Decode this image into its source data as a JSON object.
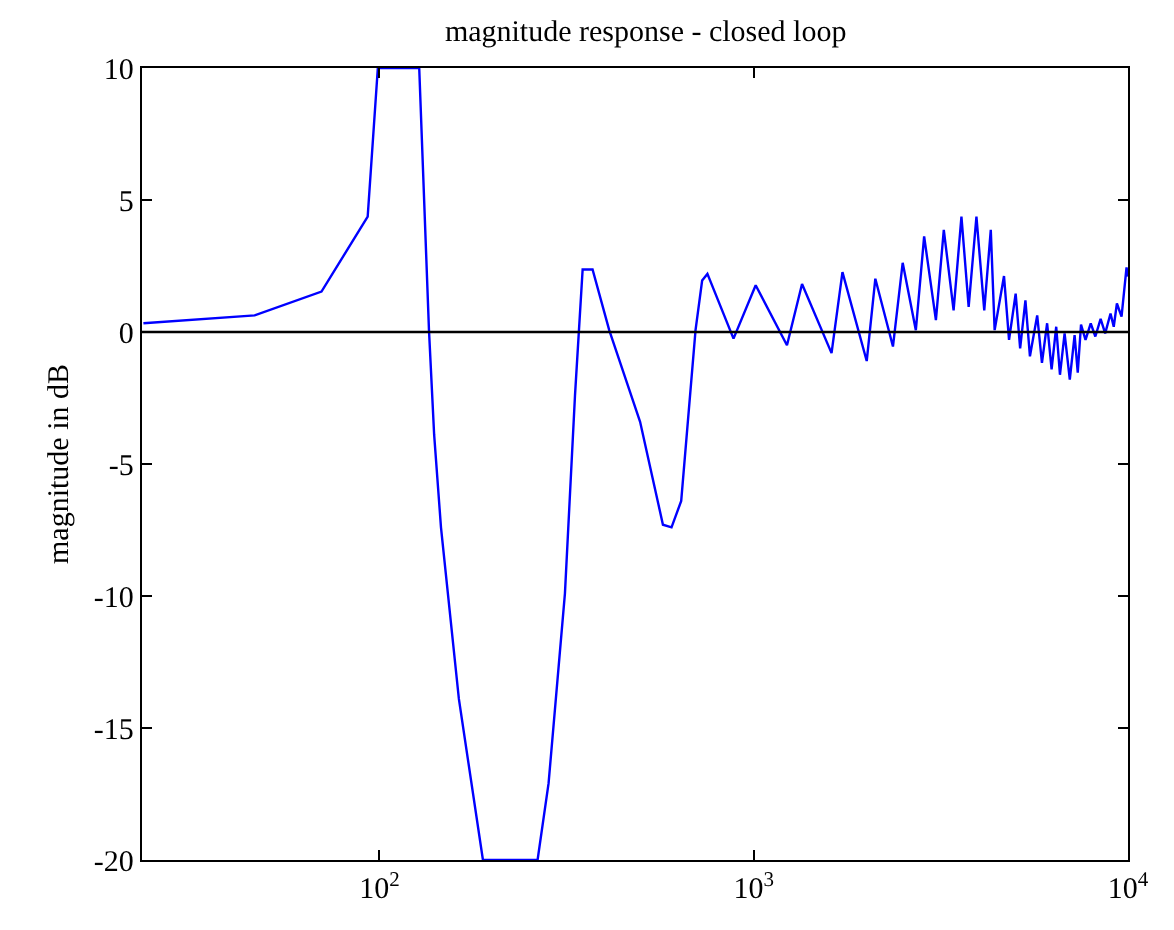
{
  "chart_data": {
    "type": "line",
    "title": "magnitude response - closed loop",
    "ylabel": "magnitude in dB",
    "log": "x",
    "marker": "none",
    "line_style": "solid",
    "xlim": [
      23.2,
      10000
    ],
    "ylim": [
      -20,
      10
    ],
    "xticks": [
      {
        "value": 100,
        "label": "10$^{2}$"
      },
      {
        "value": 1000,
        "label": "10$^{3}$"
      },
      {
        "value": 10000,
        "label": "10$^{4}$"
      }
    ],
    "yticks": [
      -20,
      -15,
      -10,
      -5,
      0,
      5,
      10
    ],
    "ref_lines": [
      {
        "axis": "y",
        "value": 0,
        "color": "#000000"
      }
    ],
    "series": [
      {
        "color": "#0000ff",
        "x": [
          23.4,
          46.4,
          70,
          93,
          99,
          127.7,
          135.6,
          140,
          146,
          163,
          189,
          264.5,
          283,
          313,
          333,
          349,
          371,
          411,
          497,
          572,
          603,
          640,
          699,
          728,
          752,
          883,
          1012,
          1227,
          1346,
          1614,
          1726,
          2004,
          2113,
          2355,
          2500,
          2711,
          2853,
          3067,
          3220,
          3420,
          3589,
          3752,
          3936,
          4130,
          4299,
          4402,
          4663,
          4810,
          5010,
          5150,
          5320,
          5470,
          5720,
          5890,
          6080,
          6250,
          6430,
          6580,
          6770,
          6990,
          7200,
          7340,
          7490,
          7700,
          7950,
          8180,
          8450,
          8690,
          8980,
          9160,
          9340,
          9610,
          9910,
          10000
        ],
        "values": [
          0.33,
          0.63,
          1.53,
          4.37,
          10,
          10,
          0.07,
          -3.9,
          -7.4,
          -13.9,
          -20,
          -20,
          -17.1,
          -9.9,
          -2.4,
          2.37,
          2.37,
          0.07,
          -3.4,
          -7.3,
          -7.4,
          -6.4,
          0.07,
          1.95,
          2.2,
          -0.25,
          1.77,
          -0.5,
          1.82,
          -0.8,
          2.27,
          -1.1,
          2.02,
          -0.55,
          2.62,
          0.07,
          3.62,
          0.45,
          3.87,
          0.82,
          4.37,
          0.95,
          4.37,
          0.82,
          3.87,
          0.07,
          2.12,
          -0.3,
          1.45,
          -0.62,
          1.2,
          -0.92,
          0.63,
          -1.17,
          0.33,
          -1.42,
          0.2,
          -1.62,
          -0.05,
          -1.8,
          -0.12,
          -1.54,
          0.28,
          -0.3,
          0.33,
          -0.17,
          0.5,
          -0.05,
          0.7,
          0.2,
          1.08,
          0.58,
          2.45,
          2.1
        ]
      }
    ]
  }
}
